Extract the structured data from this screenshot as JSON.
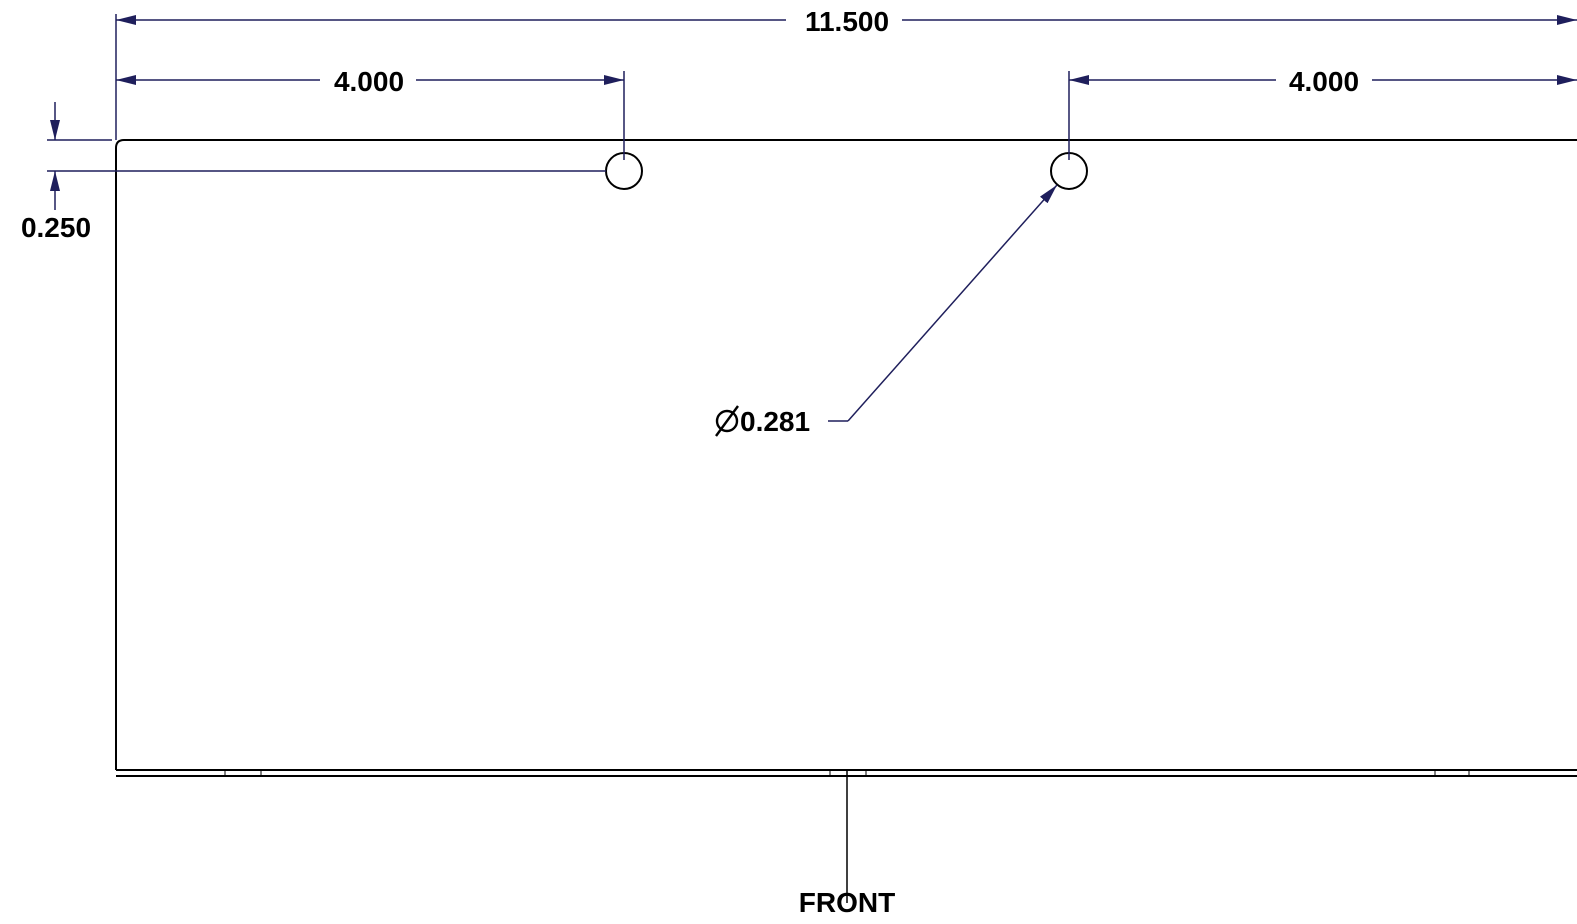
{
  "colors": {
    "dimension": "#1f1f5c",
    "outline": "#000000",
    "background": "#ffffff"
  },
  "dimensions": {
    "overall_width": "11.500",
    "hole_left_offset": "4.000",
    "hole_right_offset": "4.000",
    "hole_edge_offset": "0.250",
    "hole_diameter": "0.281",
    "diameter_symbol": "diameter-symbol"
  },
  "labels": {
    "front": "FRONT"
  }
}
